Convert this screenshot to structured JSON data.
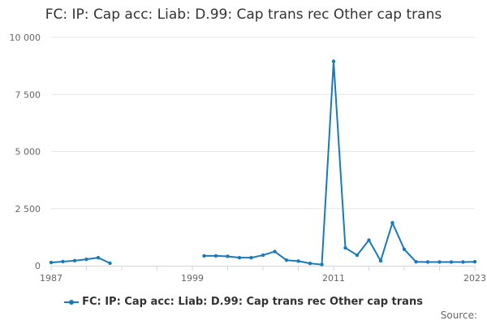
{
  "title": "FC: IP: Cap acc: Liab: D.99: Cap trans rec Other cap trans",
  "source_label": "Source:",
  "colors": {
    "series": "#1a7ab8",
    "grid": "#e6e6e6",
    "axis": "#ccd6eb"
  },
  "chart_data": {
    "type": "line",
    "title": "FC: IP: Cap acc: Liab: D.99: Cap trans rec Other cap trans",
    "xlabel": "",
    "ylabel": "",
    "xlim": [
      1987,
      2023
    ],
    "ylim": [
      0,
      10000
    ],
    "x_ticks": [
      1987,
      1999,
      2011,
      2023
    ],
    "y_ticks": [
      0,
      2500,
      5000,
      7500,
      10000
    ],
    "y_tick_labels": [
      "0",
      "2 500",
      "5 000",
      "7 500",
      "10 000"
    ],
    "grid": true,
    "legend_position": "bottom",
    "series": [
      {
        "name": "FC: IP: Cap acc: Liab: D.99: Cap trans rec Other cap trans",
        "points": [
          [
            1987,
            140
          ],
          [
            1988,
            180
          ],
          [
            1989,
            220
          ],
          [
            1990,
            280
          ],
          [
            1991,
            350
          ],
          [
            1992,
            110
          ],
          [
            1993,
            null
          ],
          [
            1994,
            null
          ],
          [
            1995,
            null
          ],
          [
            1996,
            null
          ],
          [
            1997,
            null
          ],
          [
            1998,
            null
          ],
          [
            1999,
            null
          ],
          [
            2000,
            430
          ],
          [
            2001,
            430
          ],
          [
            2002,
            410
          ],
          [
            2003,
            350
          ],
          [
            2004,
            350
          ],
          [
            2005,
            460
          ],
          [
            2006,
            620
          ],
          [
            2007,
            240
          ],
          [
            2008,
            200
          ],
          [
            2009,
            100
          ],
          [
            2010,
            50
          ],
          [
            2011,
            8950
          ],
          [
            2012,
            780
          ],
          [
            2013,
            460
          ],
          [
            2014,
            1120
          ],
          [
            2015,
            210
          ],
          [
            2016,
            1880
          ],
          [
            2017,
            720
          ],
          [
            2018,
            170
          ],
          [
            2019,
            160
          ],
          [
            2020,
            160
          ],
          [
            2021,
            160
          ],
          [
            2022,
            160
          ],
          [
            2023,
            170
          ]
        ]
      }
    ]
  }
}
